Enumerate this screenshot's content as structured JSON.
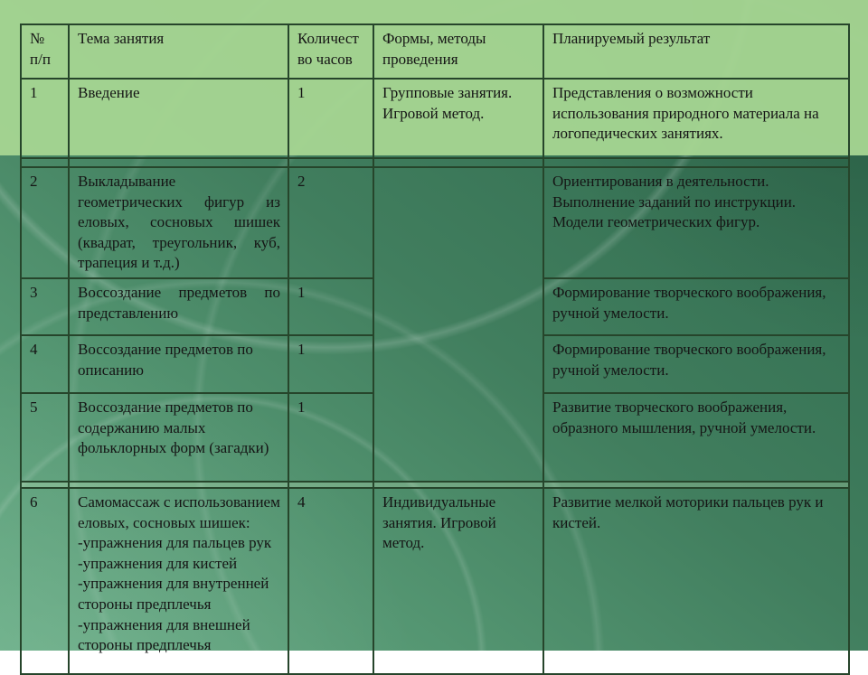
{
  "theme": {
    "bg-dark": "#2c674b",
    "bg-light": "#67ad85",
    "cell-light": "rgba(167,214,146,0.95)",
    "band-mid": "rgba(210,238,195,0.28)",
    "border": "#26452b",
    "text": "#151515"
  },
  "table": {
    "columns": [
      {
        "label": "№ п/п"
      },
      {
        "label": "Тема занятия"
      },
      {
        "label": "Количест во часов"
      },
      {
        "label": "Формы, методы проведения"
      },
      {
        "label": "Планируемый результат"
      }
    ],
    "rows": [
      {
        "num": "1",
        "topic": "Введение",
        "hours": "1",
        "forms": "Групповые занятия.\nИгровой метод.",
        "result": "Представления о возможности использования природного материала на логопедических занятиях."
      },
      {
        "num": "2",
        "topic": "Выкладывание геометрических фигур из еловых, сосновых шишек (квадрат, треугольник, куб, трапеция и т.д.)",
        "hours": "2",
        "forms": "",
        "result": "Ориентирования в деятельности.\nВыполнение заданий по инструкции. Модели геометрических фигур."
      },
      {
        "num": "3",
        "topic": "Воссоздание предметов по представлению",
        "hours": "1",
        "result": "Формирование творческого воображения, ручной умелости."
      },
      {
        "num": "4",
        "topic": "Воссоздание предметов по описанию",
        "hours": "1",
        "result": "Формирование творческого воображения, ручной умелости."
      },
      {
        "num": "5",
        "topic": "Воссоздание предметов по содержанию малых фольклорных форм (загадки)",
        "hours": "1",
        "result": "Развитие творческого воображения, образного мышления, ручной умелости."
      },
      {
        "num": "6",
        "topic": "Самомассаж с использованием еловых, сосновых шишек:\n-упражнения для пальцев рук\n-упражнения для кистей\n-упражнения для внутренней стороны предплечья\n-упражнения для внешней стороны предплечья",
        "hours": "4",
        "forms": "Индивидуальные занятия. Игровой метод.",
        "result": "Развитие мелкой моторики пальцев рук и кистей."
      }
    ]
  }
}
